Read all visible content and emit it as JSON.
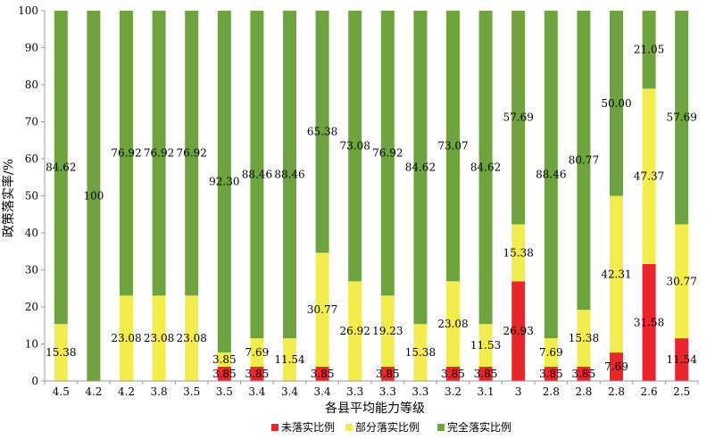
{
  "chart_data": {
    "type": "bar",
    "stacked": true,
    "xlabel": "各县平均能力等级",
    "ylabel": "政策落实率/%",
    "ylim": [
      0,
      100
    ],
    "yticks": [
      0,
      10,
      20,
      30,
      40,
      50,
      60,
      70,
      80,
      90,
      100
    ],
    "grid": false,
    "legend_position": "bottom",
    "categories": [
      "4.5",
      "4.2",
      "4.2",
      "3.8",
      "3.5",
      "3.5",
      "3.4",
      "3.4",
      "3.4",
      "3.3",
      "3.3",
      "3.3",
      "3.2",
      "3.1",
      "3",
      "2.8",
      "2.8",
      "2.8",
      "2.6",
      "2.5"
    ],
    "series": [
      {
        "name": "未落实比例",
        "color": "#e8262b",
        "values": [
          0,
          0,
          0,
          0,
          0,
          3.85,
          3.85,
          0,
          3.85,
          0,
          3.85,
          0,
          3.85,
          3.85,
          26.93,
          3.85,
          3.85,
          7.69,
          31.58,
          11.54
        ],
        "labels": [
          "",
          "",
          "",
          "",
          "",
          "3.85",
          "3.85",
          "",
          "3.85",
          "",
          "3.85",
          "",
          "3.85",
          "3.85",
          "26.93",
          "3.85",
          "3.85",
          "7.69",
          "31.58",
          "11.54"
        ]
      },
      {
        "name": "部分落实比例",
        "color": "#f2ec4e",
        "values": [
          15.38,
          0,
          23.08,
          23.08,
          23.08,
          3.85,
          7.69,
          11.54,
          30.77,
          26.92,
          19.23,
          15.38,
          23.08,
          11.53,
          15.38,
          7.69,
          15.38,
          42.31,
          47.37,
          30.77
        ],
        "labels": [
          "15.38",
          "",
          "23.08",
          "23.08",
          "23.08",
          "3.85",
          "7.69",
          "11.54",
          "30.77",
          "26.92",
          "19.23",
          "15.38",
          "23.08",
          "11.53",
          "15.38",
          "7.69",
          "15.38",
          "42.31",
          "47.37",
          "30.77"
        ]
      },
      {
        "name": "完全落实比例",
        "color": "#6ea33f",
        "values": [
          84.62,
          100,
          76.92,
          76.92,
          76.92,
          92.3,
          88.46,
          88.46,
          65.38,
          73.08,
          76.92,
          84.62,
          73.07,
          84.62,
          57.69,
          88.46,
          80.77,
          50.0,
          21.05,
          57.69
        ],
        "labels": [
          "84.62",
          "100",
          "76.92",
          "76.92",
          "76.92",
          "92.30",
          "88.46",
          "88.46",
          "65.38",
          "73.08",
          "76.92",
          "84.62",
          "73.07",
          "84.62",
          "57.69",
          "88.46",
          "80.77",
          "50.00",
          "21.05",
          "57.69"
        ]
      }
    ]
  }
}
